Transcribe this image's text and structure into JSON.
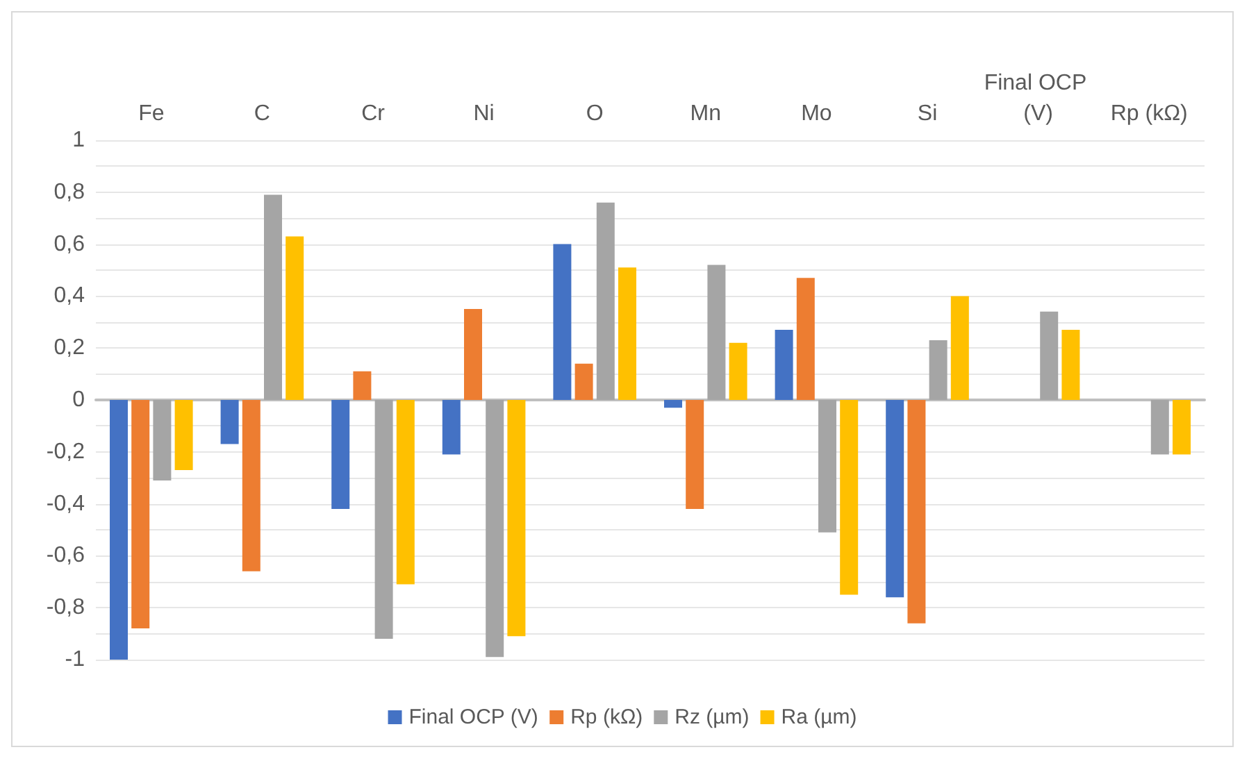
{
  "chart_data": {
    "type": "bar",
    "categories": [
      "Fe",
      "C",
      "Cr",
      "Ni",
      "O",
      "Mn",
      "Mo",
      "Si",
      "Final OCP (V)",
      "Rp (kΩ)"
    ],
    "series": [
      {
        "name": "Final OCP (V)",
        "color": "#4472c4",
        "values": [
          -1.0,
          -0.17,
          -0.42,
          -0.21,
          0.6,
          -0.03,
          0.27,
          -0.76,
          null,
          null
        ]
      },
      {
        "name": "Rp (kΩ)",
        "color": "#ed7d31",
        "values": [
          -0.88,
          -0.66,
          0.11,
          0.35,
          0.14,
          -0.42,
          0.47,
          -0.86,
          null,
          null
        ]
      },
      {
        "name": "Rz (µm)",
        "color": "#a5a5a5",
        "values": [
          -0.31,
          0.79,
          -0.92,
          -0.99,
          0.76,
          0.52,
          -0.51,
          0.23,
          0.34,
          -0.21
        ]
      },
      {
        "name": "Ra (µm)",
        "color": "#ffc000",
        "values": [
          -0.27,
          0.63,
          -0.71,
          -0.91,
          0.51,
          0.22,
          -0.75,
          0.4,
          0.27,
          -0.21
        ]
      }
    ],
    "ylim": [
      -1,
      1
    ],
    "yticks": [
      -1,
      {
        "value": -0.9,
        "label": null
      },
      {
        "value": -0.8,
        "label": "-0,8"
      },
      {
        "value": -0.7,
        "label": null
      },
      {
        "value": -0.6,
        "label": "-0,6"
      },
      {
        "value": -0.5,
        "label": null
      },
      {
        "value": -0.4,
        "label": "-0,4"
      },
      {
        "value": -0.3,
        "label": null
      },
      {
        "value": -0.2,
        "label": "-0,2"
      },
      {
        "value": -0.1,
        "label": null
      },
      0,
      {
        "value": 0.1,
        "label": null
      },
      {
        "value": 0.2,
        "label": "0,2"
      },
      {
        "value": 0.3,
        "label": null
      },
      {
        "value": 0.4,
        "label": "0,4"
      },
      {
        "value": 0.5,
        "label": null
      },
      {
        "value": 0.6,
        "label": "0,6"
      },
      {
        "value": 0.7,
        "label": null
      },
      {
        "value": 0.8,
        "label": "0,8"
      },
      {
        "value": 0.9,
        "label": null
      },
      1
    ],
    "grid": true,
    "legend": "bottom"
  }
}
